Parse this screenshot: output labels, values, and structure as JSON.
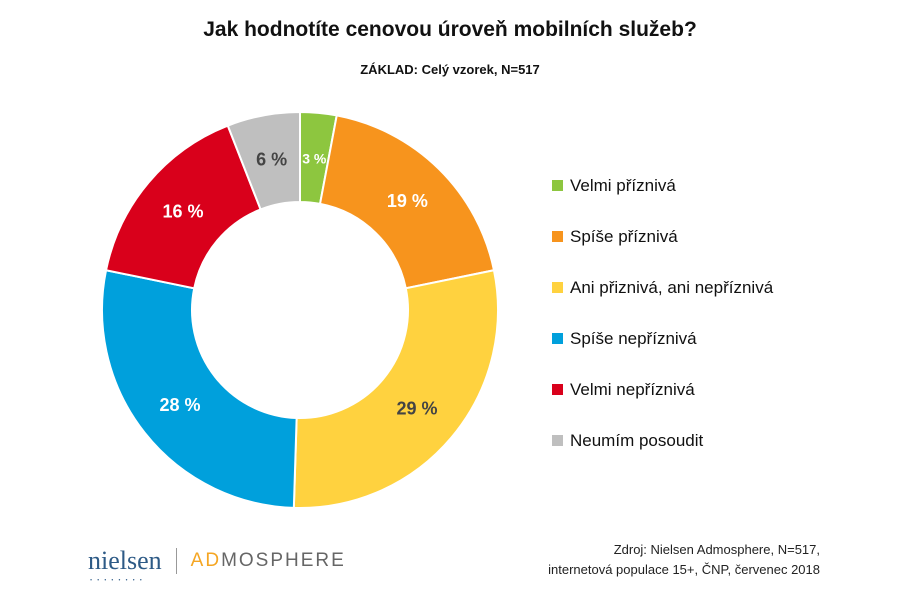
{
  "chart_data": {
    "type": "pie",
    "variant": "donut",
    "title": "Jak hodnotíte cenovou úroveň mobilních služeb?",
    "subtitle": "ZÁKLAD: Celý vzorek, N=517",
    "legend_position": "right",
    "categories": [
      "Velmi příznivá",
      "Spíše příznivá",
      "Ani přiznivá, ani nepříznivá",
      "Spíše nepříznivá",
      "Velmi nepříznivá",
      "Neumím posoudit"
    ],
    "values": [
      3,
      19,
      29,
      28,
      16,
      6
    ],
    "labels": [
      "3 %",
      "19 %",
      "29 %",
      "28 %",
      "16 %",
      "6 %"
    ],
    "colors": [
      "#8DC63F",
      "#F7941D",
      "#FFD23F",
      "#00A0DC",
      "#D9001B",
      "#BFBFBF"
    ],
    "label_colors": [
      "#ffffff",
      "#ffffff",
      "#444444",
      "#ffffff",
      "#ffffff",
      "#444444"
    ]
  },
  "source": {
    "line1": "Zdroj: Nielsen Admosphere, N=517,",
    "line2": "internetová populace 15+, ČNP, červenec 2018"
  },
  "logo": {
    "nielsen": "nielsen",
    "admosphere_ad": "AD",
    "admosphere_rest": "MOSPHERE"
  }
}
